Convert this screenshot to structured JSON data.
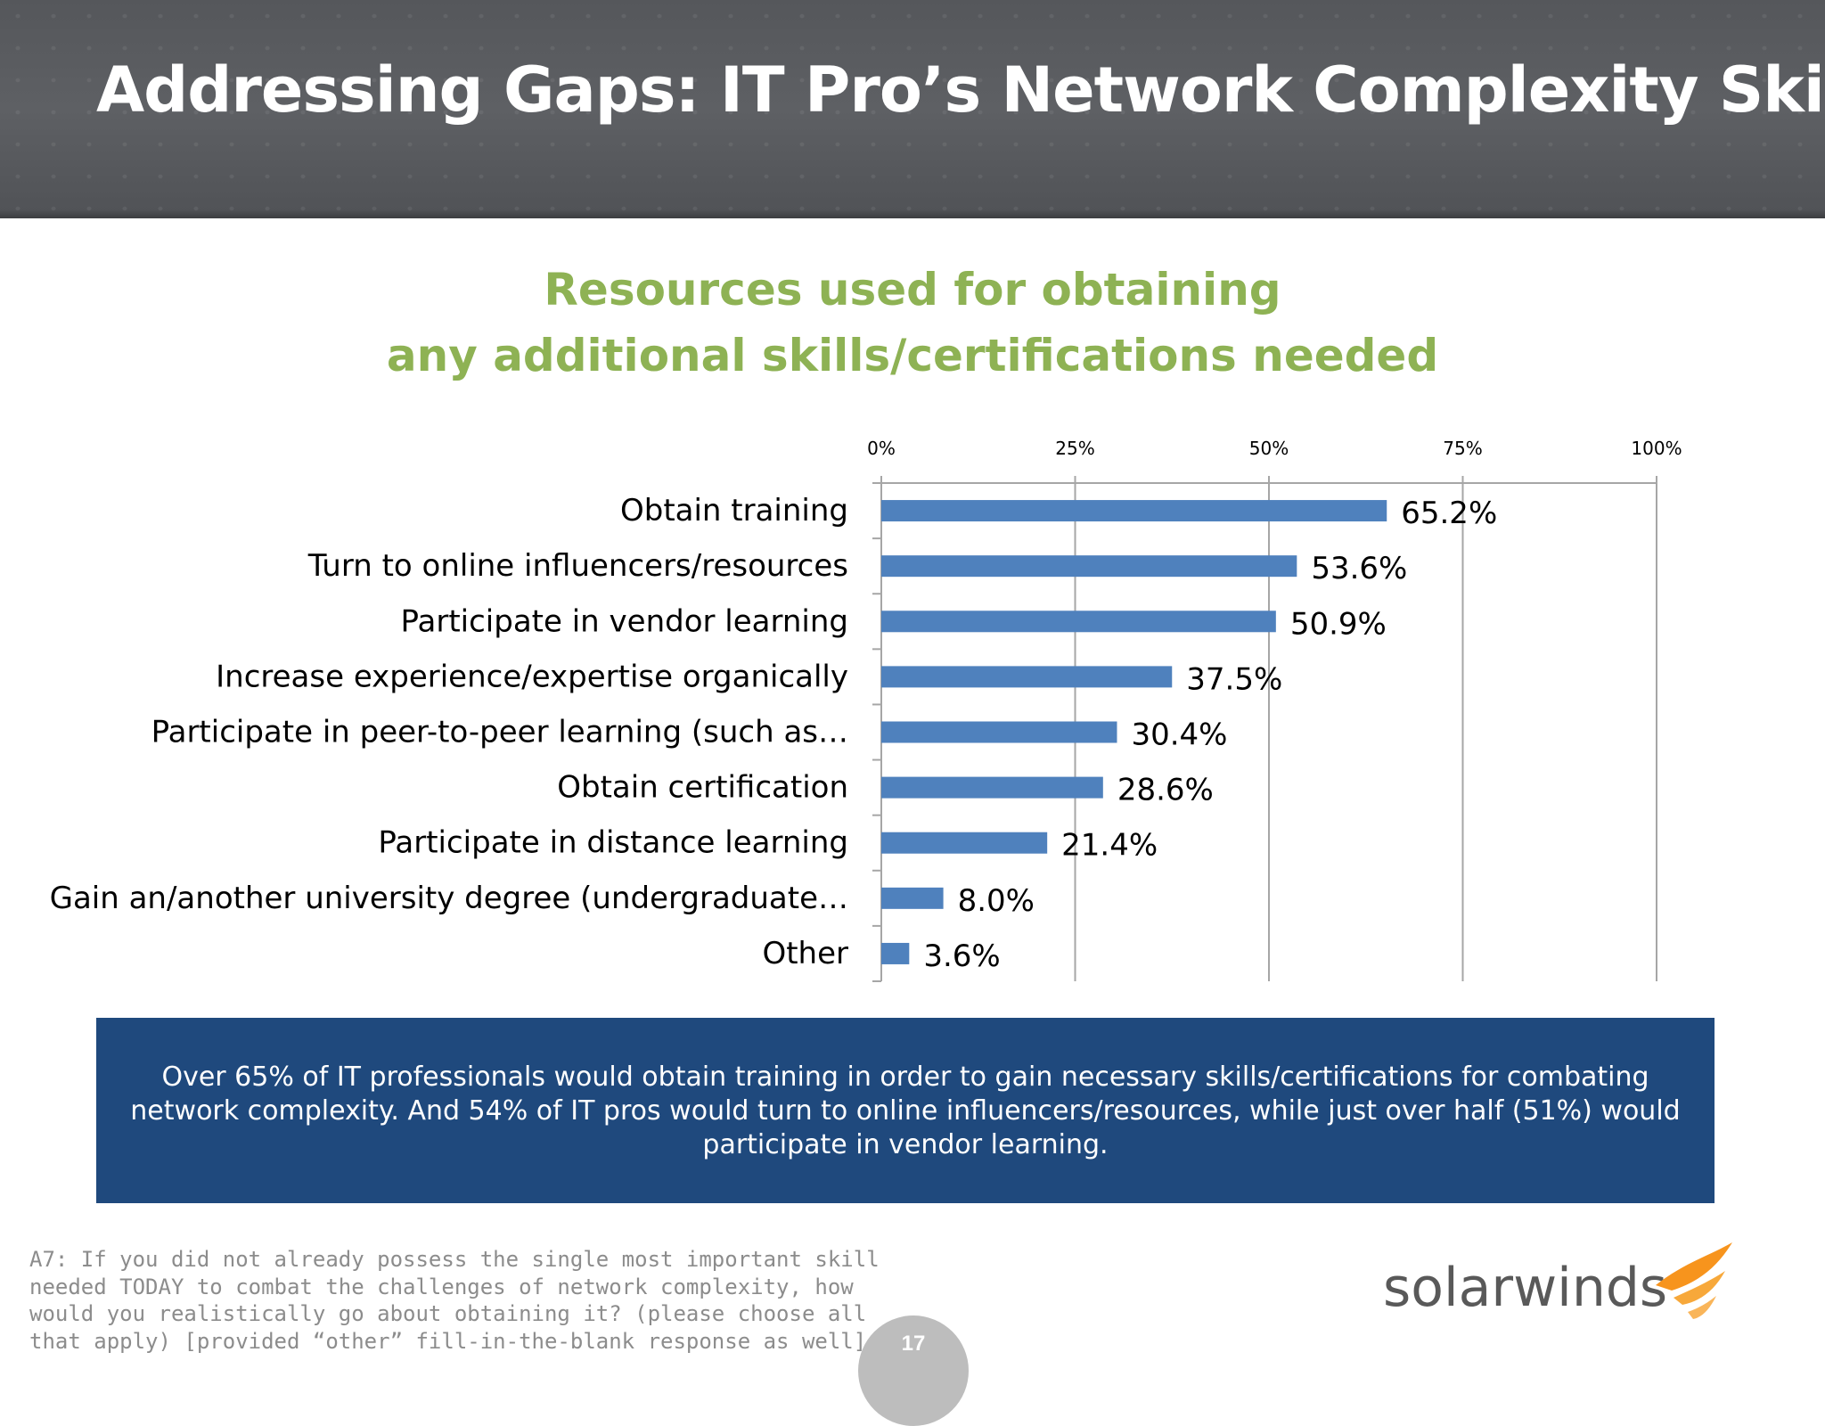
{
  "slide": {
    "title": "Addressing Gaps: IT Pro’s Network Complexity Skillset",
    "page_number": "17"
  },
  "chart_data": {
    "type": "bar",
    "orientation": "horizontal",
    "title_lines": [
      "Resources used for obtaining",
      "any additional skills/certifications needed"
    ],
    "categories": [
      "Obtain training",
      "Turn to online influencers/resources",
      "Participate in vendor learning",
      "Increase experience/expertise organically",
      "Participate in peer-to-peer learning (such as…",
      "Obtain certification",
      "Participate in distance learning",
      "Gain an/another university degree (undergraduate…",
      "Other"
    ],
    "values": [
      65.2,
      53.6,
      50.9,
      37.5,
      30.4,
      28.6,
      21.4,
      8.0,
      3.6
    ],
    "value_labels": [
      "65.2%",
      "53.6%",
      "50.9%",
      "37.5%",
      "30.4%",
      "28.6%",
      "21.4%",
      "8.0%",
      "3.6%"
    ],
    "xlim": [
      0,
      100
    ],
    "x_ticks": [
      0,
      25,
      50,
      75,
      100
    ],
    "x_tick_labels": [
      "0%",
      "25%",
      "50%",
      "75%",
      "100%"
    ],
    "x_axis_position": "top",
    "grid": true,
    "bar_color": "#4f81bd"
  },
  "callout": {
    "text": "Over 65% of IT professionals would obtain training in order to gain necessary skills/certifications for combating network complexity. And 54% of IT pros would turn to online influencers/resources, while just over half (51%) would participate in vendor learning."
  },
  "footnote": {
    "text": "A7: If you did not already possess the single most important skill needed TODAY to combat the challenges of network complexity, how would you realistically go about obtaining it? (please choose all that apply) [provided “other” fill-in-the-blank response as well]"
  },
  "logo": {
    "text": "solarwinds",
    "icon": "solarwinds-flame-icon",
    "accent_color": "#f7941d"
  }
}
